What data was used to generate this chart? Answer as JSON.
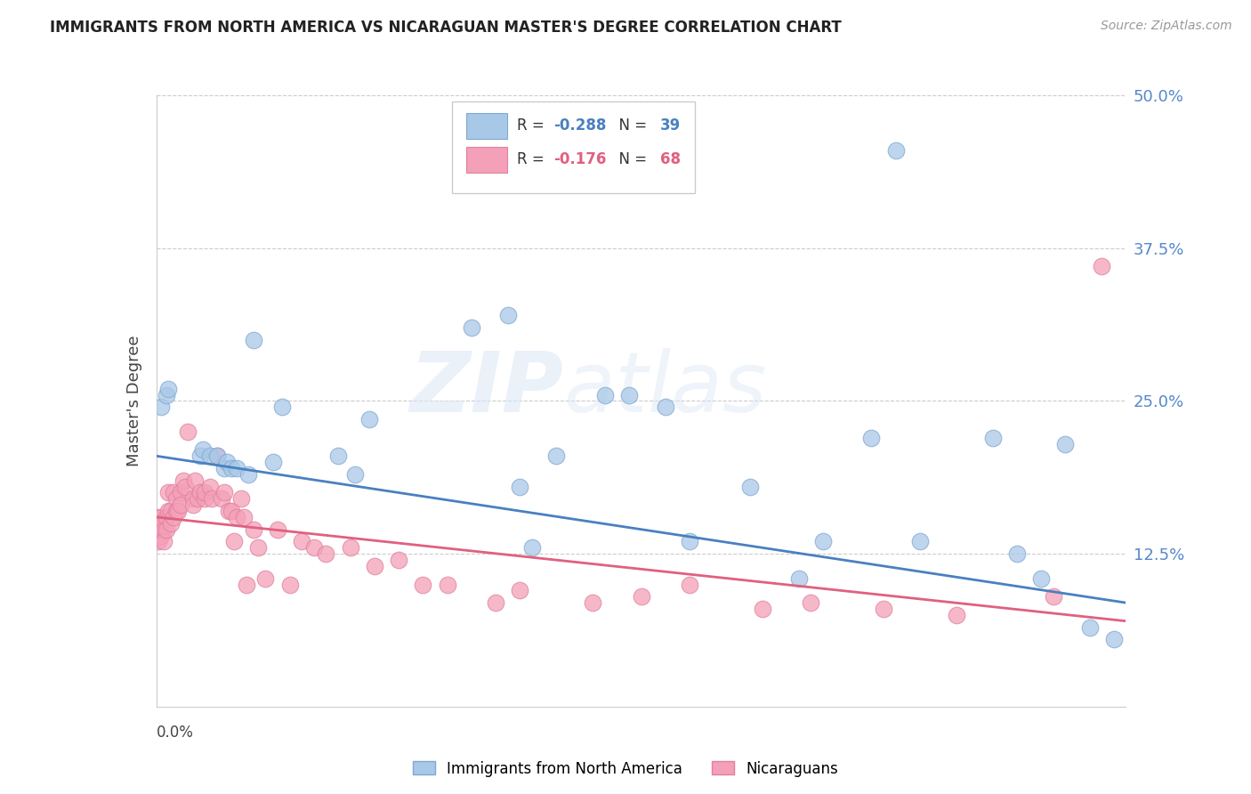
{
  "title": "IMMIGRANTS FROM NORTH AMERICA VS NICARAGUAN MASTER'S DEGREE CORRELATION CHART",
  "source": "Source: ZipAtlas.com",
  "xlabel_bottom_left": "0.0%",
  "ylabel": "Master's Degree",
  "right_yticks": [
    0.0,
    0.125,
    0.25,
    0.375,
    0.5
  ],
  "right_yticklabels": [
    "",
    "12.5%",
    "25.0%",
    "37.5%",
    "50.0%"
  ],
  "legend_series": [
    {
      "label": "Immigrants from North America",
      "R": -0.288,
      "N": 39,
      "color": "#a8c8e8"
    },
    {
      "label": "Nicaraguans",
      "R": -0.176,
      "N": 68,
      "color": "#f4a0b8"
    }
  ],
  "blue_scatter_x": [
    0.002,
    0.004,
    0.005,
    0.018,
    0.019,
    0.022,
    0.025,
    0.028,
    0.029,
    0.031,
    0.033,
    0.038,
    0.04,
    0.048,
    0.052,
    0.075,
    0.082,
    0.088,
    0.13,
    0.145,
    0.15,
    0.155,
    0.165,
    0.185,
    0.195,
    0.21,
    0.22,
    0.245,
    0.265,
    0.275,
    0.295,
    0.305,
    0.315,
    0.345,
    0.355,
    0.365,
    0.375,
    0.385,
    0.395
  ],
  "blue_scatter_y": [
    0.245,
    0.255,
    0.26,
    0.205,
    0.21,
    0.205,
    0.205,
    0.195,
    0.2,
    0.195,
    0.195,
    0.19,
    0.3,
    0.2,
    0.245,
    0.205,
    0.19,
    0.235,
    0.31,
    0.32,
    0.18,
    0.13,
    0.205,
    0.255,
    0.255,
    0.245,
    0.135,
    0.18,
    0.105,
    0.135,
    0.22,
    0.455,
    0.135,
    0.22,
    0.125,
    0.105,
    0.215,
    0.065,
    0.055
  ],
  "pink_scatter_x": [
    0.0,
    0.001,
    0.001,
    0.001,
    0.002,
    0.002,
    0.002,
    0.003,
    0.003,
    0.004,
    0.004,
    0.005,
    0.005,
    0.006,
    0.006,
    0.007,
    0.007,
    0.008,
    0.008,
    0.009,
    0.01,
    0.01,
    0.011,
    0.012,
    0.013,
    0.015,
    0.015,
    0.016,
    0.017,
    0.018,
    0.02,
    0.02,
    0.022,
    0.023,
    0.025,
    0.027,
    0.028,
    0.03,
    0.031,
    0.032,
    0.033,
    0.035,
    0.036,
    0.037,
    0.04,
    0.042,
    0.045,
    0.05,
    0.055,
    0.06,
    0.065,
    0.07,
    0.08,
    0.09,
    0.1,
    0.11,
    0.12,
    0.14,
    0.15,
    0.18,
    0.2,
    0.22,
    0.25,
    0.27,
    0.3,
    0.33,
    0.37,
    0.39
  ],
  "pink_scatter_y": [
    0.155,
    0.15,
    0.145,
    0.135,
    0.155,
    0.15,
    0.14,
    0.145,
    0.135,
    0.155,
    0.145,
    0.175,
    0.16,
    0.16,
    0.15,
    0.175,
    0.155,
    0.17,
    0.16,
    0.16,
    0.175,
    0.165,
    0.185,
    0.18,
    0.225,
    0.17,
    0.165,
    0.185,
    0.17,
    0.175,
    0.17,
    0.175,
    0.18,
    0.17,
    0.205,
    0.17,
    0.175,
    0.16,
    0.16,
    0.135,
    0.155,
    0.17,
    0.155,
    0.1,
    0.145,
    0.13,
    0.105,
    0.145,
    0.1,
    0.135,
    0.13,
    0.125,
    0.13,
    0.115,
    0.12,
    0.1,
    0.1,
    0.085,
    0.095,
    0.085,
    0.09,
    0.1,
    0.08,
    0.085,
    0.08,
    0.075,
    0.09,
    0.36
  ],
  "watermark_zip": "ZIP",
  "watermark_atlas": "atlas",
  "blue_line_color": "#4a80c0",
  "pink_line_color": "#e06080",
  "scatter_blue_color": "#a8c8e8",
  "scatter_pink_color": "#f4a0b8",
  "scatter_blue_edge": "#80a8d0",
  "scatter_pink_edge": "#e080a0",
  "grid_color": "#cccccc",
  "background_color": "#ffffff",
  "xlim": [
    0.0,
    0.4
  ],
  "ylim": [
    0.0,
    0.5
  ],
  "blue_line_start_y": 0.205,
  "blue_line_end_y": 0.085,
  "pink_line_start_y": 0.155,
  "pink_line_end_y": 0.07
}
